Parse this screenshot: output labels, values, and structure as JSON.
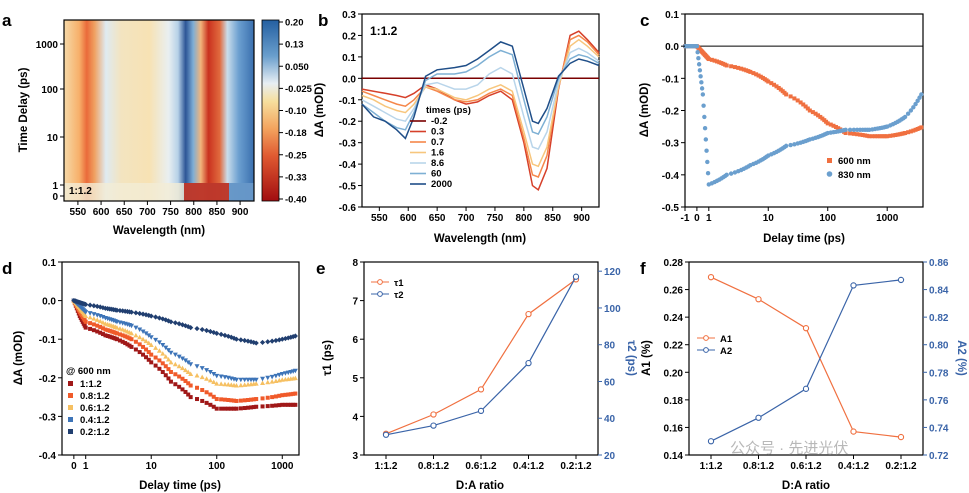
{
  "panels": {
    "a": {
      "label": "a",
      "ratio_label": "1:1.2",
      "xlabel": "Wavelength (nm)",
      "ylabel": "Time Delay (ps)",
      "xticks": [
        "550",
        "600",
        "650",
        "700",
        "750",
        "800",
        "850",
        "900"
      ],
      "yticks": [
        "0",
        "1",
        "10",
        "100",
        "1000"
      ],
      "colorbar_ticks": [
        "0.20",
        "0.13",
        "0.050",
        "-0.025",
        "-0.10",
        "-0.18",
        "-0.25",
        "-0.33",
        "-0.40"
      ],
      "colorbar_range": [
        -0.4,
        0.2
      ]
    },
    "b": {
      "label": "b",
      "ratio_label": "1:1.2",
      "xlabel": "Wavelength (nm)",
      "ylabel": "ΔA (mOD)",
      "xticks": [
        "550",
        "600",
        "650",
        "700",
        "750",
        "800",
        "850",
        "900"
      ],
      "yticks": [
        "0.3",
        "0.2",
        "0.1",
        "0.0",
        "-0.1",
        "-0.2",
        "-0.3",
        "-0.4",
        "-0.5",
        "-0.6"
      ],
      "legend_title": "times (ps)",
      "legend": [
        "-0.2",
        "0.3",
        "0.7",
        "1.6",
        "8.6",
        "60",
        "2000"
      ]
    },
    "c": {
      "label": "c",
      "xlabel": "Delay time (ps)",
      "ylabel": "ΔA (mOD)",
      "xticks": [
        "-1",
        "0",
        "1",
        "10",
        "100",
        "1000"
      ],
      "yticks": [
        "0.1",
        "0.0",
        "-0.1",
        "-0.2",
        "-0.3",
        "-0.4",
        "-0.5"
      ],
      "legend": [
        "600 nm",
        "830 nm"
      ]
    },
    "d": {
      "label": "d",
      "xlabel": "Delay time (ps)",
      "ylabel": "ΔA (mOD)",
      "xticks": [
        "0",
        "1",
        "10",
        "100",
        "1000"
      ],
      "yticks": [
        "0.1",
        "0.0",
        "-0.1",
        "-0.2",
        "-0.3",
        "-0.4"
      ],
      "legend_title": "@ 600 nm",
      "legend": [
        "1:1.2",
        "0.8:1.2",
        "0.6:1.2",
        "0.4:1.2",
        "0.2:1.2"
      ]
    },
    "e": {
      "label": "e",
      "xlabel": "D:A ratio",
      "ylabel_left": "τ1 (ps)",
      "ylabel_right": "τ2 (ps)",
      "yticks_left": [
        "3",
        "4",
        "5",
        "6",
        "7",
        "8"
      ],
      "yticks_right": [
        "20",
        "40",
        "60",
        "80",
        "100",
        "120"
      ],
      "legend": [
        "τ1",
        "τ2"
      ]
    },
    "f": {
      "label": "f",
      "xlabel": "D:A ratio",
      "ylabel_left": "A1 (%)",
      "ylabel_right": "A2 (%)",
      "yticks_left": [
        "0.14",
        "0.16",
        "0.18",
        "0.20",
        "0.22",
        "0.24",
        "0.26",
        "0.28"
      ],
      "yticks_right": [
        "0.72",
        "0.74",
        "0.76",
        "0.78",
        "0.80",
        "0.82",
        "0.84",
        "0.86"
      ],
      "legend": [
        "A1",
        "A2"
      ]
    }
  },
  "watermark": "公众号 · 先进光伏",
  "colors": {
    "orange": "#f07040",
    "blue": "#3a64a8",
    "lightblue": "#6b9fce",
    "d_series": [
      "#a01818",
      "#f05a2a",
      "#f6c062",
      "#3d74b8",
      "#213f70"
    ],
    "b_series": [
      "#7a0000",
      "#d6402a",
      "#f5874a",
      "#f7c67d",
      "#b9d5ea",
      "#7eb0d4",
      "#1f4e88"
    ]
  },
  "chart_data": [
    {
      "panel": "e",
      "type": "line",
      "categories": [
        "1:1.2",
        "0.8:1.2",
        "0.6:1.2",
        "0.4:1.2",
        "0.2:1.2"
      ],
      "series": [
        {
          "name": "τ1",
          "axis": "left",
          "values": [
            3.55,
            4.05,
            4.7,
            6.65,
            7.55
          ]
        },
        {
          "name": "τ2",
          "axis": "right",
          "values": [
            31,
            36,
            44,
            70,
            117
          ]
        }
      ],
      "xlabel": "D:A ratio",
      "ylabel": "τ1 (ps)",
      "ylabel_right": "τ2 (ps)",
      "ylim": [
        3,
        8
      ],
      "ylim_right": [
        20,
        125
      ]
    },
    {
      "panel": "f",
      "type": "line",
      "categories": [
        "1:1.2",
        "0.8:1.2",
        "0.6:1.2",
        "0.4:1.2",
        "0.2:1.2"
      ],
      "series": [
        {
          "name": "A1",
          "axis": "left",
          "values": [
            0.269,
            0.253,
            0.232,
            0.157,
            0.153
          ]
        },
        {
          "name": "A2",
          "axis": "right",
          "values": [
            0.73,
            0.747,
            0.768,
            0.843,
            0.847
          ]
        }
      ],
      "xlabel": "D:A ratio",
      "ylabel": "A1 (%)",
      "ylabel_right": "A2 (%)",
      "ylim": [
        0.14,
        0.28
      ],
      "ylim_right": [
        0.72,
        0.86
      ]
    },
    {
      "panel": "d",
      "type": "scatter",
      "x": [
        0,
        0.5,
        1,
        2,
        3,
        5,
        10,
        20,
        40,
        100,
        200,
        400,
        1000,
        1700
      ],
      "series": [
        {
          "name": "1:1.2",
          "values": [
            0,
            -0.04,
            -0.07,
            -0.09,
            -0.1,
            -0.12,
            -0.16,
            -0.21,
            -0.25,
            -0.28,
            -0.28,
            -0.275,
            -0.27,
            -0.27
          ]
        },
        {
          "name": "0.8:1.2",
          "values": [
            0,
            -0.03,
            -0.055,
            -0.075,
            -0.085,
            -0.1,
            -0.14,
            -0.185,
            -0.22,
            -0.255,
            -0.26,
            -0.255,
            -0.245,
            -0.24
          ]
        },
        {
          "name": "0.6:1.2",
          "values": [
            0,
            -0.02,
            -0.04,
            -0.06,
            -0.07,
            -0.085,
            -0.115,
            -0.16,
            -0.19,
            -0.215,
            -0.22,
            -0.215,
            -0.205,
            -0.2
          ]
        },
        {
          "name": "0.4:1.2",
          "values": [
            0,
            -0.015,
            -0.03,
            -0.045,
            -0.055,
            -0.065,
            -0.095,
            -0.135,
            -0.165,
            -0.195,
            -0.205,
            -0.205,
            -0.19,
            -0.18
          ]
        },
        {
          "name": "0.2:1.2",
          "values": [
            0,
            -0.005,
            -0.01,
            -0.02,
            -0.025,
            -0.03,
            -0.04,
            -0.055,
            -0.07,
            -0.085,
            -0.1,
            -0.11,
            -0.1,
            -0.09
          ]
        }
      ],
      "xlabel": "Delay time (ps)",
      "ylabel": "ΔA (mOD)",
      "ylim": [
        -0.4,
        0.1
      ],
      "xscale": "linear-then-log"
    },
    {
      "panel": "c",
      "type": "scatter",
      "x": [
        -1,
        0,
        0.5,
        1,
        2,
        5,
        10,
        20,
        50,
        100,
        200,
        500,
        1000,
        2000,
        4000
      ],
      "series": [
        {
          "name": "600 nm",
          "values": [
            0,
            0,
            -0.02,
            -0.04,
            -0.06,
            -0.08,
            -0.11,
            -0.15,
            -0.2,
            -0.24,
            -0.27,
            -0.28,
            -0.28,
            -0.27,
            -0.25
          ]
        },
        {
          "name": "830 nm",
          "values": [
            0,
            0,
            -0.15,
            -0.43,
            -0.4,
            -0.37,
            -0.34,
            -0.31,
            -0.29,
            -0.27,
            -0.26,
            -0.26,
            -0.25,
            -0.22,
            -0.14
          ]
        }
      ],
      "xlabel": "Delay time (ps)",
      "ylabel": "ΔA (mOD)",
      "ylim": [
        -0.5,
        0.1
      ],
      "xscale": "linear-then-log"
    },
    {
      "panel": "b",
      "type": "line",
      "x": [
        520,
        540,
        560,
        580,
        595,
        610,
        630,
        650,
        680,
        700,
        720,
        740,
        760,
        780,
        800,
        815,
        825,
        840,
        860,
        880,
        895,
        910,
        930
      ],
      "series": [
        {
          "name": "-0.2",
          "values": [
            0,
            0,
            0,
            0,
            0,
            0,
            0,
            0,
            0,
            0,
            0,
            0,
            0,
            0,
            0,
            0,
            0,
            0,
            0,
            0,
            0,
            0,
            0
          ]
        },
        {
          "name": "0.3",
          "values": [
            -0.05,
            -0.06,
            -0.07,
            -0.08,
            -0.09,
            -0.07,
            -0.03,
            -0.05,
            -0.1,
            -0.12,
            -0.11,
            -0.08,
            -0.06,
            -0.1,
            -0.3,
            -0.5,
            -0.52,
            -0.42,
            -0.05,
            0.2,
            0.22,
            0.18,
            0.12
          ]
        },
        {
          "name": "0.7",
          "values": [
            -0.06,
            -0.08,
            -0.1,
            -0.12,
            -0.13,
            -0.1,
            -0.04,
            -0.06,
            -0.1,
            -0.11,
            -0.1,
            -0.07,
            -0.05,
            -0.08,
            -0.28,
            -0.45,
            -0.46,
            -0.36,
            -0.04,
            0.18,
            0.2,
            0.17,
            0.11
          ]
        },
        {
          "name": "1.6",
          "values": [
            -0.08,
            -0.1,
            -0.13,
            -0.15,
            -0.16,
            -0.12,
            -0.04,
            -0.05,
            -0.09,
            -0.1,
            -0.08,
            -0.05,
            -0.03,
            -0.06,
            -0.25,
            -0.4,
            -0.41,
            -0.32,
            -0.04,
            0.15,
            0.18,
            0.15,
            0.1
          ]
        },
        {
          "name": "8.6",
          "values": [
            -0.1,
            -0.13,
            -0.16,
            -0.19,
            -0.2,
            -0.14,
            -0.03,
            -0.02,
            -0.05,
            -0.05,
            -0.03,
            0.02,
            0.05,
            0.02,
            -0.18,
            -0.32,
            -0.33,
            -0.25,
            -0.02,
            0.12,
            0.14,
            0.12,
            0.08
          ]
        },
        {
          "name": "60",
          "values": [
            -0.12,
            -0.16,
            -0.2,
            -0.23,
            -0.24,
            -0.16,
            -0.01,
            0.02,
            0.02,
            0.03,
            0.06,
            0.1,
            0.13,
            0.11,
            -0.1,
            -0.25,
            -0.26,
            -0.18,
            0,
            0.09,
            0.11,
            0.1,
            0.07
          ]
        },
        {
          "name": "2000",
          "values": [
            -0.12,
            -0.18,
            -0.2,
            -0.24,
            -0.28,
            -0.18,
            0.01,
            0.04,
            0.05,
            0.06,
            0.09,
            0.13,
            0.17,
            0.15,
            -0.05,
            -0.2,
            -0.21,
            -0.14,
            0.01,
            0.07,
            0.09,
            0.08,
            0.06
          ]
        }
      ],
      "xlabel": "Wavelength (nm)",
      "ylabel": "ΔA (mOD)",
      "xlim": [
        520,
        930
      ],
      "ylim": [
        -0.6,
        0.3
      ]
    }
  ]
}
